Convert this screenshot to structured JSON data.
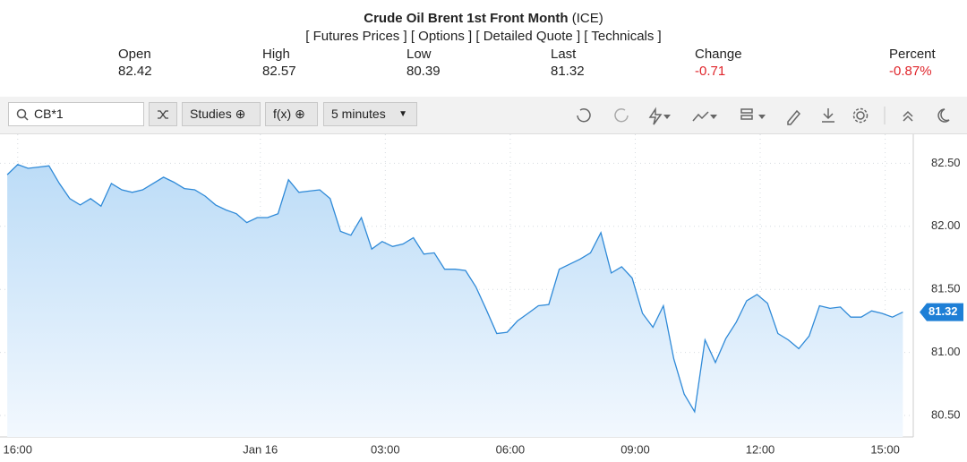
{
  "header": {
    "title": "Crude Oil Brent 1st Front Month",
    "exchange": "(ICE)",
    "links": [
      "[ Futures Prices ]",
      "[ Options ]",
      "[ Detailed Quote ]",
      "[ Technicals ]"
    ]
  },
  "quote": [
    {
      "label": "Open",
      "value": "82.42"
    },
    {
      "label": "High",
      "value": "82.57"
    },
    {
      "label": "Low",
      "value": "80.39"
    },
    {
      "label": "Last",
      "value": "81.32"
    },
    {
      "label": "Change",
      "value": "-0.71"
    },
    {
      "label": "Percent",
      "value": "-0.87%"
    }
  ],
  "toolbar": {
    "symbol": "CB*1",
    "studies": "Studies",
    "fx": "f(x)",
    "interval": "5 minutes"
  },
  "chart_data": {
    "type": "area",
    "color": "#2f8ad8",
    "grid": true,
    "x": [
      -1,
      0,
      1,
      2,
      3,
      4,
      5,
      6,
      7,
      8,
      9,
      10,
      11,
      12,
      13,
      14,
      15,
      16,
      17,
      18,
      19,
      20,
      21,
      22,
      23,
      24,
      25,
      26,
      27,
      28,
      29,
      30,
      31,
      32,
      33,
      34,
      35,
      36,
      37,
      38,
      39,
      40,
      41,
      42,
      43,
      44,
      45,
      46,
      47,
      48,
      49,
      50,
      51,
      52,
      53,
      54,
      55,
      56,
      57,
      58,
      59,
      60,
      61,
      62,
      63,
      64,
      65,
      66,
      67,
      68,
      69,
      70,
      71,
      72,
      73,
      74,
      75,
      76,
      77,
      78,
      79,
      80,
      81,
      82,
      83,
      84,
      85
    ],
    "values": [
      82.41,
      82.49,
      82.46,
      82.47,
      82.48,
      82.34,
      82.22,
      82.17,
      82.22,
      82.16,
      82.34,
      82.29,
      82.27,
      82.29,
      82.34,
      82.39,
      82.35,
      82.3,
      82.29,
      82.24,
      82.17,
      82.13,
      82.1,
      82.03,
      82.07,
      82.07,
      82.1,
      82.37,
      82.27,
      82.28,
      82.29,
      82.22,
      81.96,
      81.93,
      82.07,
      81.82,
      81.88,
      81.84,
      81.86,
      81.91,
      81.78,
      81.79,
      81.66,
      81.66,
      81.65,
      81.52,
      81.34,
      81.15,
      81.16,
      81.25,
      81.31,
      81.37,
      81.38,
      81.66,
      81.7,
      81.74,
      81.79,
      81.95,
      81.63,
      81.68,
      81.59,
      81.31,
      81.2,
      81.37,
      80.95,
      80.67,
      80.53,
      81.1,
      80.92,
      81.11,
      81.24,
      81.41,
      81.46,
      81.39,
      81.15,
      81.1,
      81.03,
      81.13,
      81.37,
      81.35,
      81.36,
      81.28,
      81.28,
      81.33,
      81.31,
      81.28,
      81.32
    ],
    "xlim": [
      -1.7,
      86.0
    ],
    "xticks": [
      {
        "value": 0,
        "label": "16:00"
      },
      {
        "value": 23.3,
        "label": "Jan 16"
      },
      {
        "value": 35.3,
        "label": "03:00"
      },
      {
        "value": 47.3,
        "label": "06:00"
      },
      {
        "value": 59.3,
        "label": "09:00"
      },
      {
        "value": 71.3,
        "label": "12:00"
      },
      {
        "value": 83.3,
        "label": "15:00"
      }
    ],
    "ylim": [
      80.33,
      82.73
    ],
    "yticks": [
      {
        "value": 80.5,
        "label": "80.50"
      },
      {
        "value": 81,
        "label": "81.00"
      },
      {
        "value": 81.5,
        "label": "81.50"
      },
      {
        "value": 82,
        "label": "82.00"
      },
      {
        "value": 82.5,
        "label": "82.50"
      }
    ],
    "last_marker": {
      "value": 81.32,
      "label": "81.32"
    }
  }
}
